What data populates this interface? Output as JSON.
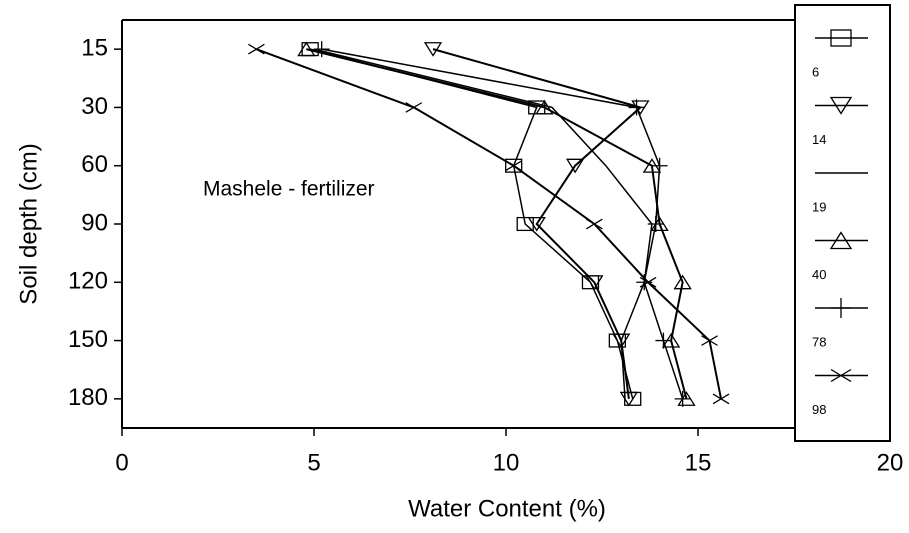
{
  "chart_data": {
    "type": "line",
    "orientation": "horizontal",
    "annotation": "Mashele - fertilizer",
    "x_label": "Water Content (%)",
    "y_label": "Soil depth (cm)",
    "categories": [
      15,
      30,
      60,
      90,
      120,
      150,
      180
    ],
    "xlim": [
      0,
      20
    ],
    "xticks": [
      0,
      5,
      10,
      15,
      20
    ],
    "series": [
      {
        "name": "6",
        "color": "#000000",
        "marker": "square",
        "values": [
          4.9,
          10.8,
          10.2,
          10.5,
          12.2,
          12.9,
          13.3
        ]
      },
      {
        "name": "14",
        "color": "#000000",
        "marker": "triangle-down",
        "values": [
          8.1,
          13.5,
          11.8,
          10.8,
          12.3,
          13.0,
          13.2
        ]
      },
      {
        "name": "19",
        "color": "#000000",
        "marker": "none",
        "values": [
          5.0,
          11.2,
          12.6,
          13.8,
          13.6,
          13.0,
          13.1
        ]
      },
      {
        "name": "40",
        "color": "#000000",
        "marker": "triangle-up",
        "values": [
          4.8,
          11.0,
          13.8,
          14.0,
          14.6,
          14.3,
          14.7
        ]
      },
      {
        "name": "78",
        "color": "#000000",
        "marker": "plus",
        "values": [
          5.2,
          13.4,
          14.0,
          13.9,
          13.6,
          14.1,
          14.6
        ]
      },
      {
        "name": "98",
        "color": "#000000",
        "marker": "x",
        "values": [
          3.5,
          7.6,
          10.2,
          12.3,
          13.7,
          15.3,
          15.6
        ]
      }
    ]
  }
}
